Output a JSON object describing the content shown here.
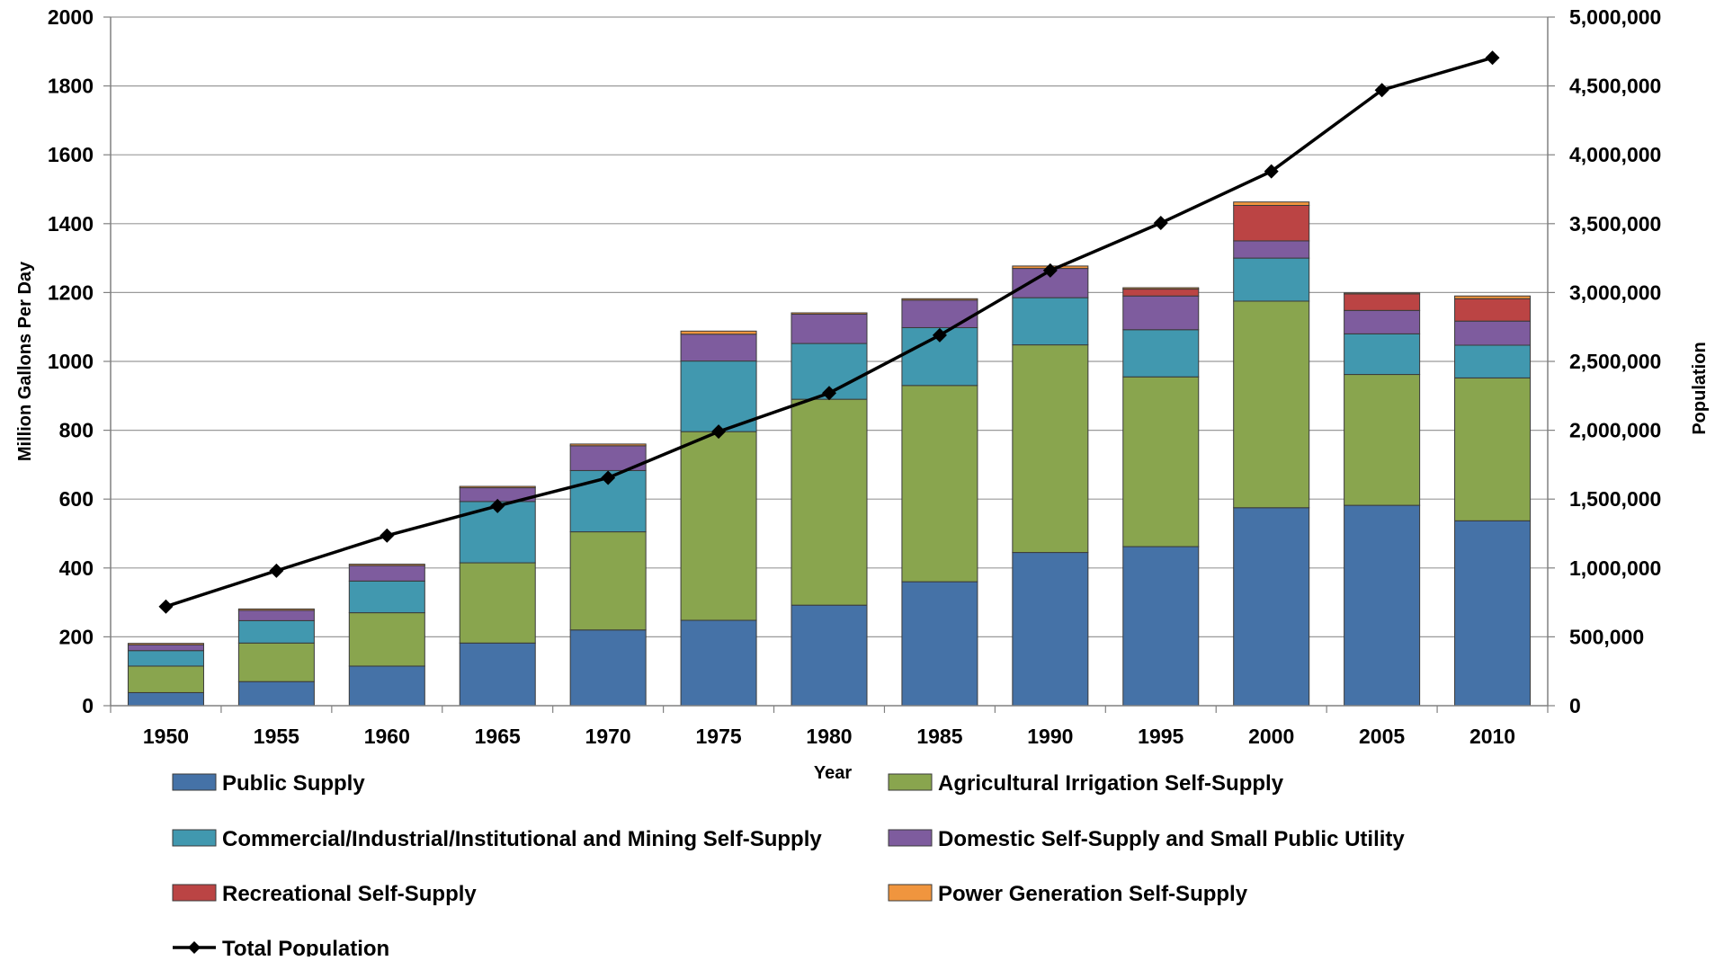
{
  "chart_data": {
    "type": "bar",
    "subtype": "stacked-bar-with-line",
    "title": "",
    "xlabel": "Year",
    "ylabel": "Million Gallons Per Day",
    "y2label": "Population",
    "ylim": [
      0,
      2000
    ],
    "y2lim": [
      0,
      5000000
    ],
    "yticks": [
      "0",
      "200",
      "400",
      "600",
      "800",
      "1000",
      "1200",
      "1400",
      "1600",
      "1800",
      "2000"
    ],
    "y2ticks": [
      "0",
      "500,000",
      "1,000,000",
      "1,500,000",
      "2,000,000",
      "2,500,000",
      "3,000,000",
      "3,500,000",
      "4,000,000",
      "4,500,000",
      "5,000,000"
    ],
    "grid": true,
    "legend_position": "bottom",
    "categories": [
      "1950",
      "1955",
      "1960",
      "1965",
      "1970",
      "1975",
      "1980",
      "1985",
      "1990",
      "1995",
      "2000",
      "2005",
      "2010"
    ],
    "series": [
      {
        "name": "Public Supply",
        "color": "#4572A7",
        "values": [
          38,
          70,
          115,
          182,
          220,
          248,
          292,
          360,
          445,
          462,
          575,
          582,
          537
        ]
      },
      {
        "name": "Agricultural Irrigation Self-Supply",
        "color": "#89A54E",
        "values": [
          77,
          112,
          155,
          233,
          285,
          548,
          598,
          570,
          603,
          493,
          600,
          380,
          415
        ]
      },
      {
        "name": "Commercial/Industrial/Institutional and Mining Self-Supply",
        "color": "#4198AF",
        "values": [
          45,
          65,
          92,
          178,
          178,
          205,
          162,
          168,
          137,
          137,
          125,
          118,
          95
        ]
      },
      {
        "name": "Domestic Self-Supply and Small Public Utility",
        "color": "#7E5C9E",
        "values": [
          17,
          30,
          45,
          40,
          72,
          78,
          85,
          80,
          85,
          98,
          50,
          68,
          70
        ]
      },
      {
        "name": "Recreational Self-Supply",
        "color": "#BB4444",
        "values": [
          0,
          0,
          0,
          0,
          0,
          0,
          0,
          0,
          0,
          20,
          103,
          48,
          65
        ]
      },
      {
        "name": "Power Generation Self-Supply",
        "color": "#F0953E",
        "values": [
          4,
          4,
          4,
          4,
          5,
          9,
          4,
          4,
          7,
          4,
          10,
          3,
          8
        ]
      }
    ],
    "line_series": {
      "name": "Total Population",
      "color": "#000000",
      "axis": "right",
      "values": [
        720000,
        980000,
        1235000,
        1450000,
        1655000,
        1990000,
        2270000,
        2690000,
        3160000,
        3505000,
        3880000,
        4470000,
        4705000
      ]
    }
  }
}
